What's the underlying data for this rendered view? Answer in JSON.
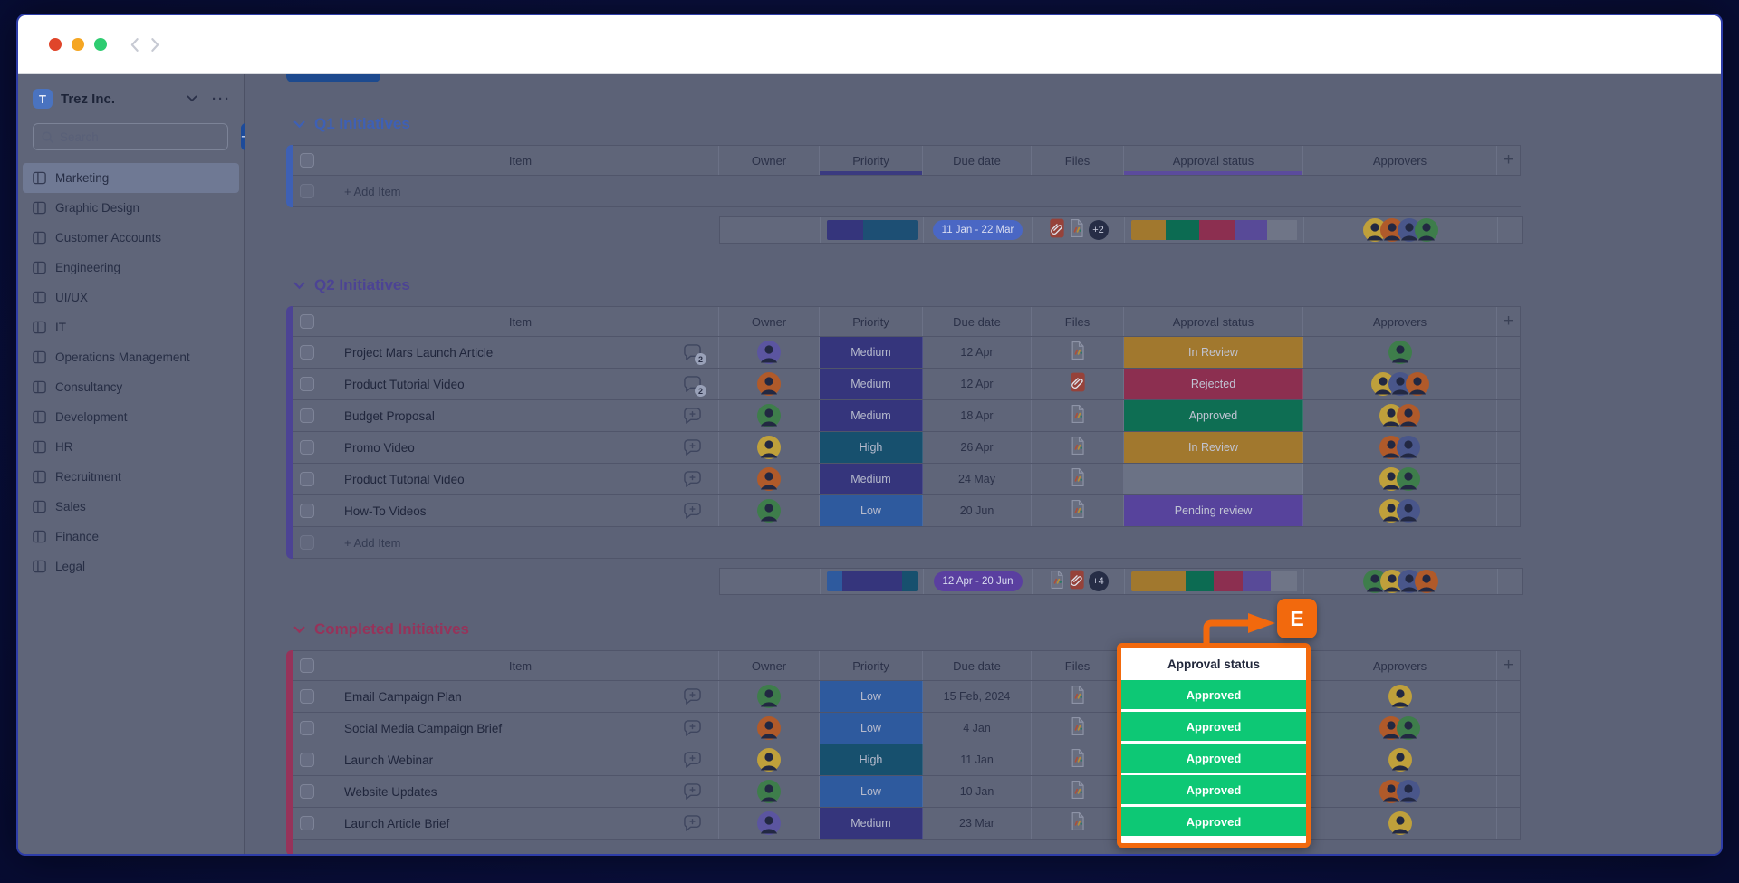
{
  "window": {
    "buttons": [
      "close",
      "minimize",
      "zoom"
    ],
    "nav": {
      "back": "back",
      "forward": "forward"
    }
  },
  "sidebar": {
    "workspace": {
      "initial": "T",
      "name": "Trez Inc."
    },
    "search": {
      "placeholder": "Search"
    },
    "add_button_label": "+",
    "items": [
      {
        "label": "Marketing",
        "selected": true
      },
      {
        "label": "Graphic Design",
        "selected": false
      },
      {
        "label": "Customer Accounts",
        "selected": false
      },
      {
        "label": "Engineering",
        "selected": false
      },
      {
        "label": "UI/UX",
        "selected": false
      },
      {
        "label": "IT",
        "selected": false
      },
      {
        "label": "Operations Management",
        "selected": false
      },
      {
        "label": "Consultancy",
        "selected": false
      },
      {
        "label": "Development",
        "selected": false
      },
      {
        "label": "HR",
        "selected": false
      },
      {
        "label": "Recruitment",
        "selected": false
      },
      {
        "label": "Sales",
        "selected": false
      },
      {
        "label": "Finance",
        "selected": false
      },
      {
        "label": "Legal",
        "selected": false
      }
    ]
  },
  "board": {
    "columns": {
      "item": "Item",
      "owner": "Owner",
      "priority": "Priority",
      "due": "Due date",
      "files": "Files",
      "approval": "Approval status",
      "approvers": "Approvers",
      "add_column": "+"
    },
    "add_item_label": "+ Add Item",
    "priority_colors": {
      "Low": "#2e5a9e",
      "Medium": "#35357c",
      "High": "#17506e"
    },
    "approval_colors": {
      "In Review": "#a1782e",
      "Rejected": "#8c2f50",
      "Approved": "#0e6e53",
      "Pending review": "#57439c",
      "": "#6b7285"
    },
    "avatar_colors": {
      "yellow": "#bfa03b",
      "orange": "#b05a2a",
      "green": "#3e7d4b",
      "blue": "#49568a",
      "purple": "#5b55a0"
    },
    "groups": [
      {
        "key": "q1",
        "title": "Q1 Initiatives",
        "color": "#3e60b5",
        "show_add_item": true,
        "header_underlines": {
          "priority": "#3a3a80",
          "approval": "#5b4b9d"
        },
        "rows": [],
        "footer": {
          "priority_bar": [
            [
              "#35357c",
              40
            ],
            [
              "#1d4f74",
              60
            ]
          ],
          "date_range": "11 Jan - 22 Mar",
          "date_bg": "#4a67c4",
          "files": [
            "link",
            "doc"
          ],
          "files_more": "+2",
          "approval_bar": [
            [
              "#a1782e",
              21
            ],
            [
              "#0c6b52",
              20
            ],
            [
              "#8c2f50",
              22
            ],
            [
              "#584a98",
              19
            ],
            [
              "#6f7587",
              18
            ]
          ],
          "approvers": [
            "yellow",
            "orange",
            "blue",
            "green"
          ]
        }
      },
      {
        "key": "q2",
        "title": "Q2 Initiatives",
        "color": "#4c4394",
        "show_add_item": true,
        "rows": [
          {
            "item": "Project Mars Launch Article",
            "chat": "2",
            "owner": "purple",
            "priority": "Medium",
            "due": "12 Apr",
            "file": "doc",
            "approval": "In Review",
            "approvers": [
              "green"
            ]
          },
          {
            "item": "Product Tutorial Video",
            "chat": "2",
            "owner": "orange",
            "priority": "Medium",
            "due": "12 Apr",
            "file": "link",
            "approval": "Rejected",
            "approvers": [
              "yellow",
              "blue",
              "orange"
            ]
          },
          {
            "item": "Budget Proposal",
            "chat": "add",
            "owner": "green",
            "priority": "Medium",
            "due": "18 Apr",
            "file": "doc",
            "approval": "Approved",
            "approvers": [
              "yellow",
              "orange"
            ]
          },
          {
            "item": "Promo Video",
            "chat": "add",
            "owner": "yellow",
            "priority": "High",
            "due": "26 Apr",
            "file": "doc",
            "approval": "In Review",
            "approvers": [
              "orange",
              "blue"
            ]
          },
          {
            "item": "Product Tutorial Video",
            "chat": "add",
            "owner": "orange",
            "priority": "Medium",
            "due": "24 May",
            "file": "doc",
            "approval": "",
            "approvers": [
              "yellow",
              "green"
            ]
          },
          {
            "item": "How-To Videos",
            "chat": "add",
            "owner": "green",
            "priority": "Low",
            "due": "20 Jun",
            "file": "doc",
            "approval": "Pending review",
            "approvers": [
              "yellow",
              "blue"
            ]
          }
        ],
        "footer": {
          "priority_bar": [
            [
              "#2e5a9e",
              17
            ],
            [
              "#35357c",
              66
            ],
            [
              "#17506e",
              17
            ]
          ],
          "date_range": "12 Apr - 20 Jun",
          "date_bg": "#5a3fa0",
          "files": [
            "doc",
            "link"
          ],
          "files_more": "+4",
          "approval_bar": [
            [
              "#a1782e",
              33
            ],
            [
              "#0c6b52",
              17
            ],
            [
              "#8c2f50",
              17
            ],
            [
              "#584a98",
              17
            ],
            [
              "#6f7587",
              16
            ]
          ],
          "approvers": [
            "green",
            "yellow",
            "blue",
            "orange"
          ]
        }
      },
      {
        "key": "completed",
        "title": "Completed Initiatives",
        "color": "#96335a",
        "show_add_item": false,
        "rows": [
          {
            "item": "Email Campaign Plan",
            "chat": "add",
            "owner": "green",
            "priority": "Low",
            "due": "15 Feb, 2024",
            "file": "doc",
            "approval": "Approved",
            "approvers": [
              "yellow"
            ]
          },
          {
            "item": "Social Media Campaign Brief",
            "chat": "add",
            "owner": "orange",
            "priority": "Low",
            "due": "4 Jan",
            "file": "doc",
            "approval": "Approved",
            "approvers": [
              "orange",
              "green"
            ]
          },
          {
            "item": "Launch Webinar",
            "chat": "add",
            "owner": "yellow",
            "priority": "High",
            "due": "11 Jan",
            "file": "doc",
            "approval": "Approved",
            "approvers": [
              "yellow"
            ]
          },
          {
            "item": "Website Updates",
            "chat": "add",
            "owner": "green",
            "priority": "Low",
            "due": "10 Jan",
            "file": "doc",
            "approval": "Approved",
            "approvers": [
              "orange",
              "blue"
            ]
          },
          {
            "item": "Launch Article Brief",
            "chat": "add",
            "owner": "purple",
            "priority": "Medium",
            "due": "23 Mar",
            "file": "doc",
            "approval": "Approved",
            "approvers": [
              "yellow"
            ]
          }
        ]
      }
    ]
  },
  "annotation": {
    "label": "E",
    "column_header": "Approval status",
    "values": [
      "Approved",
      "Approved",
      "Approved",
      "Approved",
      "Approved"
    ],
    "accent": "#f2690d",
    "highlight_green": "#0dc875"
  }
}
